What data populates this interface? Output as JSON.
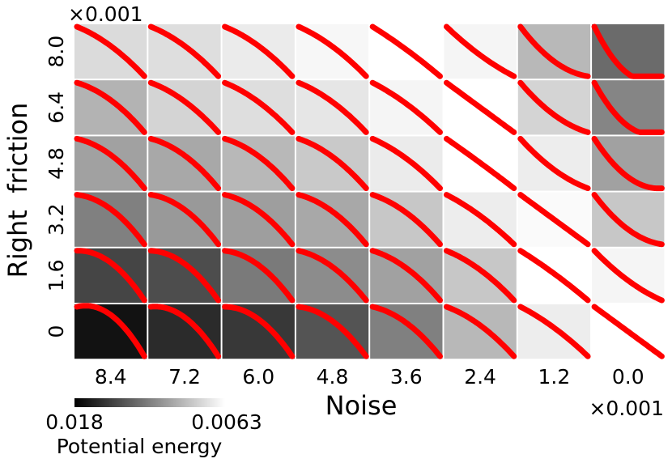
{
  "chart_data": {
    "type": "heatmap",
    "title": "",
    "xlabel": "Noise",
    "ylabel": "Right  friction",
    "x_tick_labels": [
      "8.4",
      "7.2",
      "6.0",
      "4.8",
      "3.6",
      "2.4",
      "1.2",
      "0.0"
    ],
    "y_tick_labels": [
      "8.0",
      "6.4",
      "4.8",
      "3.2",
      "1.6",
      "0"
    ],
    "x_multiplier": "×0.001",
    "y_multiplier": "×0.001",
    "colorbar": {
      "label": "Potential energy",
      "min_label": "0.018",
      "max_label": "0.0063",
      "colormap": "gray"
    },
    "cell_shade": [
      [
        0.86,
        0.87,
        0.92,
        0.97,
        1.0,
        0.96,
        0.72,
        0.42
      ],
      [
        0.7,
        0.83,
        0.87,
        0.9,
        0.96,
        1.0,
        0.83,
        0.52
      ],
      [
        0.63,
        0.66,
        0.72,
        0.79,
        0.92,
        1.0,
        0.93,
        0.63
      ],
      [
        0.5,
        0.6,
        0.62,
        0.66,
        0.78,
        0.93,
        0.98,
        0.78
      ],
      [
        0.27,
        0.3,
        0.48,
        0.55,
        0.63,
        0.78,
        1.0,
        0.96
      ],
      [
        0.07,
        0.17,
        0.22,
        0.33,
        0.5,
        0.72,
        0.93,
        1.0
      ]
    ],
    "curve_shape": [
      [
        0.45,
        0.45,
        0.45,
        0.4,
        0.15,
        -0.3,
        -0.8,
        -1.8
      ],
      [
        0.6,
        0.5,
        0.45,
        0.45,
        0.3,
        0.0,
        -0.6,
        -1.5
      ],
      [
        0.7,
        0.65,
        0.6,
        0.55,
        0.4,
        0.05,
        -0.5,
        -1.1
      ],
      [
        0.85,
        0.8,
        0.7,
        0.65,
        0.55,
        0.3,
        0.0,
        -0.8
      ],
      [
        1.05,
        0.95,
        0.85,
        0.7,
        0.6,
        0.45,
        0.15,
        -0.4
      ],
      [
        1.35,
        1.15,
        1.0,
        0.85,
        0.7,
        0.5,
        0.3,
        0.0
      ]
    ],
    "curve_color": "#ff0000"
  }
}
